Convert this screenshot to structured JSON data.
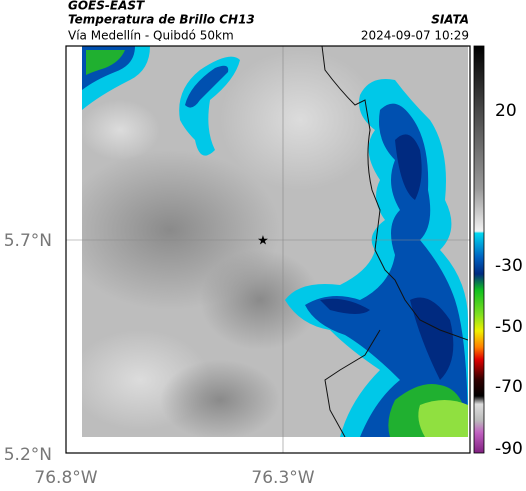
{
  "header": {
    "title": "GOES-EAST",
    "subtitle": "Temperatura de Brillo CH13",
    "location": "Vía Medellín - Quibdó 50km",
    "source": "SIATA",
    "datetime": "2024-09-07 10:29"
  },
  "map": {
    "lat_labels": [
      "5.7°N",
      "5.2°N"
    ],
    "lon_labels": [
      "76.8°W",
      "76.3°W"
    ]
  },
  "colorbar": {
    "ticks": [
      20,
      -30,
      -50,
      -70,
      -90
    ]
  }
}
